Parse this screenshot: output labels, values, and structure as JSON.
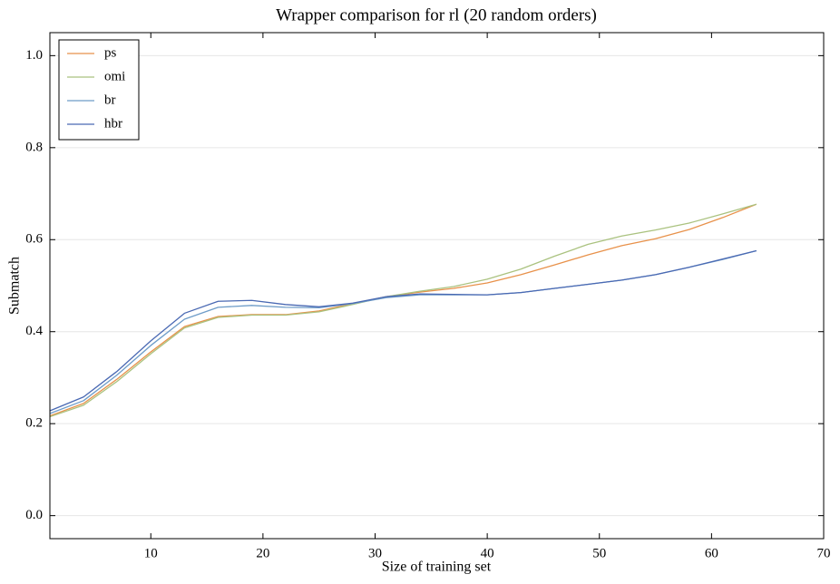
{
  "chart_data": {
    "type": "line",
    "title": "Wrapper comparison for rl (20 random orders)",
    "x_label": "Size of training set",
    "y_label": "Submatch",
    "x": [
      1,
      4,
      7,
      10,
      13,
      16,
      19,
      22,
      25,
      28,
      31,
      34,
      37,
      40,
      43,
      46,
      49,
      52,
      55,
      58,
      61,
      64
    ],
    "series": [
      {
        "name": "ps",
        "color": "#e8914a",
        "values": [
          0.217,
          0.244,
          0.297,
          0.356,
          0.411,
          0.433,
          0.437,
          0.437,
          0.445,
          0.461,
          0.476,
          0.486,
          0.494,
          0.506,
          0.524,
          0.545,
          0.567,
          0.587,
          0.602,
          0.622,
          0.648,
          0.677
        ]
      },
      {
        "name": "omi",
        "color": "#aac27f",
        "values": [
          0.215,
          0.24,
          0.292,
          0.352,
          0.408,
          0.431,
          0.436,
          0.436,
          0.443,
          0.459,
          0.476,
          0.488,
          0.498,
          0.514,
          0.536,
          0.564,
          0.59,
          0.608,
          0.621,
          0.636,
          0.656,
          0.677
        ]
      },
      {
        "name": "br",
        "color": "#6e9cc8",
        "values": [
          0.222,
          0.25,
          0.306,
          0.37,
          0.427,
          0.453,
          0.457,
          0.453,
          0.452,
          0.461,
          0.474,
          0.48,
          0.48,
          0.48,
          0.485,
          0.494,
          0.503,
          0.512,
          0.524,
          0.54,
          0.557,
          0.576
        ]
      },
      {
        "name": "hbr",
        "color": "#4a69b3",
        "values": [
          0.228,
          0.258,
          0.314,
          0.38,
          0.44,
          0.466,
          0.468,
          0.459,
          0.454,
          0.462,
          0.476,
          0.482,
          0.481,
          0.48,
          0.485,
          0.494,
          0.503,
          0.512,
          0.524,
          0.54,
          0.558,
          0.576
        ]
      }
    ],
    "xlim": [
      1,
      70
    ],
    "xticks": [
      10,
      20,
      30,
      40,
      50,
      60,
      70
    ],
    "ylim": [
      -0.05,
      1.05
    ],
    "yticks": [
      {
        "value": 0,
        "label": "0.0"
      },
      0.2,
      0.4,
      0.6,
      0.8,
      {
        "value": 1,
        "label": "1.0"
      }
    ],
    "grid": true,
    "legend": "upper-left"
  }
}
